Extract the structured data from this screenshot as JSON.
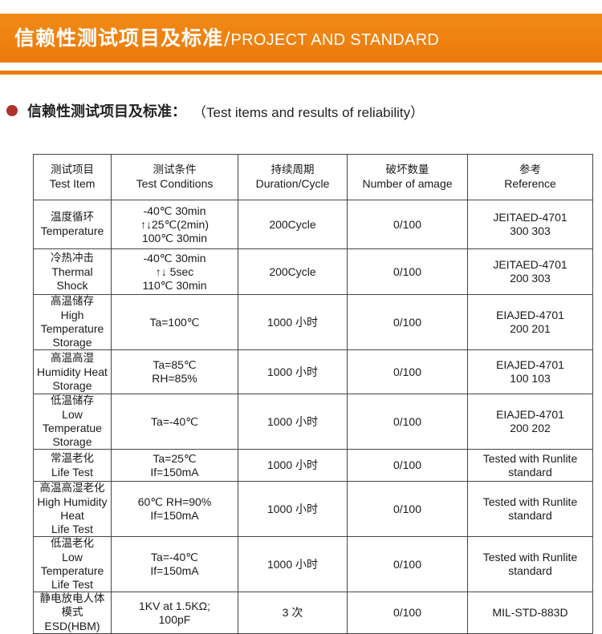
{
  "banner": {
    "title_zh": "信赖性测试项目及标准",
    "separator": "/",
    "title_en": "PROJECT AND STANDARD"
  },
  "section": {
    "heading_zh": "信赖性测试项目及标准：",
    "heading_en": "（Test items and results of reliability）"
  },
  "table": {
    "headers": [
      {
        "zh": "测试项目",
        "en": "Test Item"
      },
      {
        "zh": "测试条件",
        "en": "Test Conditions"
      },
      {
        "zh": "持续周期",
        "en": "Duration/Cycle"
      },
      {
        "zh": "破坏数量",
        "en": "Number of amage"
      },
      {
        "zh": "参考",
        "en": "Reference"
      }
    ],
    "rows": [
      {
        "item_zh": "温度循环",
        "item_en": [
          "Temperature"
        ],
        "conditions": [
          "-40℃ 30min",
          "↑↓25℃(2min)",
          "100℃ 30min"
        ],
        "duration": "200Cycle",
        "damage": "0/100",
        "reference": [
          "JEITAED-4701",
          "300 303"
        ]
      },
      {
        "item_zh": "冷热冲击",
        "item_en": [
          "Thermal Shock"
        ],
        "conditions": [
          "-40℃ 30min",
          "↑↓ 5sec",
          "110℃ 30min"
        ],
        "duration": "200Cycle",
        "damage": "0/100",
        "reference": [
          "JEITAED-4701",
          "200 303"
        ]
      },
      {
        "item_zh": "高温储存",
        "item_en": [
          "High Temperature",
          "Storage"
        ],
        "conditions": [
          "Ta=100℃"
        ],
        "duration": "1000 小时",
        "damage": "0/100",
        "reference": [
          "EIAJED-4701",
          "200 201"
        ]
      },
      {
        "item_zh": "高温高湿",
        "item_en": [
          "Humidity Heat",
          "Storage"
        ],
        "conditions": [
          "Ta=85℃",
          "RH=85%"
        ],
        "duration": "1000 小时",
        "damage": "0/100",
        "reference": [
          "EIAJED-4701",
          "100 103"
        ]
      },
      {
        "item_zh": "低温储存",
        "item_en": [
          "Low Temperatue",
          "Storage"
        ],
        "conditions": [
          "Ta=-40℃"
        ],
        "duration": "1000 小时",
        "damage": "0/100",
        "reference": [
          "EIAJED-4701",
          "200 202"
        ]
      },
      {
        "item_zh": "常温老化",
        "item_en": [
          "Life Test"
        ],
        "conditions": [
          "Ta=25℃",
          "If=150mA"
        ],
        "duration": "1000 小时",
        "damage": "0/100",
        "reference": [
          "Tested with Runlite",
          "standard"
        ]
      },
      {
        "item_zh": "高温高湿老化",
        "item_en": [
          "High Humidity Heat",
          "Life Test"
        ],
        "conditions": [
          "60℃ RH=90%",
          "If=150mA"
        ],
        "duration": "1000 小时",
        "damage": "0/100",
        "reference": [
          "Tested with Runlite",
          "standard"
        ]
      },
      {
        "item_zh": "低温老化",
        "item_en": [
          "Low Temperature",
          "Life Test"
        ],
        "conditions": [
          "Ta=-40℃",
          "If=150mA"
        ],
        "duration": "1000 小时",
        "damage": "0/100",
        "reference": [
          "Tested with Runlite",
          "standard"
        ]
      },
      {
        "item_zh": "静电放电人体模式",
        "item_en": [
          "ESD(HBM)"
        ],
        "conditions": [
          "1KV at 1.5KΩ;",
          "100pF"
        ],
        "duration": "3 次",
        "damage": "0/100",
        "reference": [
          "MIL-STD-883D"
        ]
      }
    ]
  },
  "colors": {
    "banner": "#ec7a0a",
    "bullet": "#b0302c",
    "border": "#444444"
  }
}
